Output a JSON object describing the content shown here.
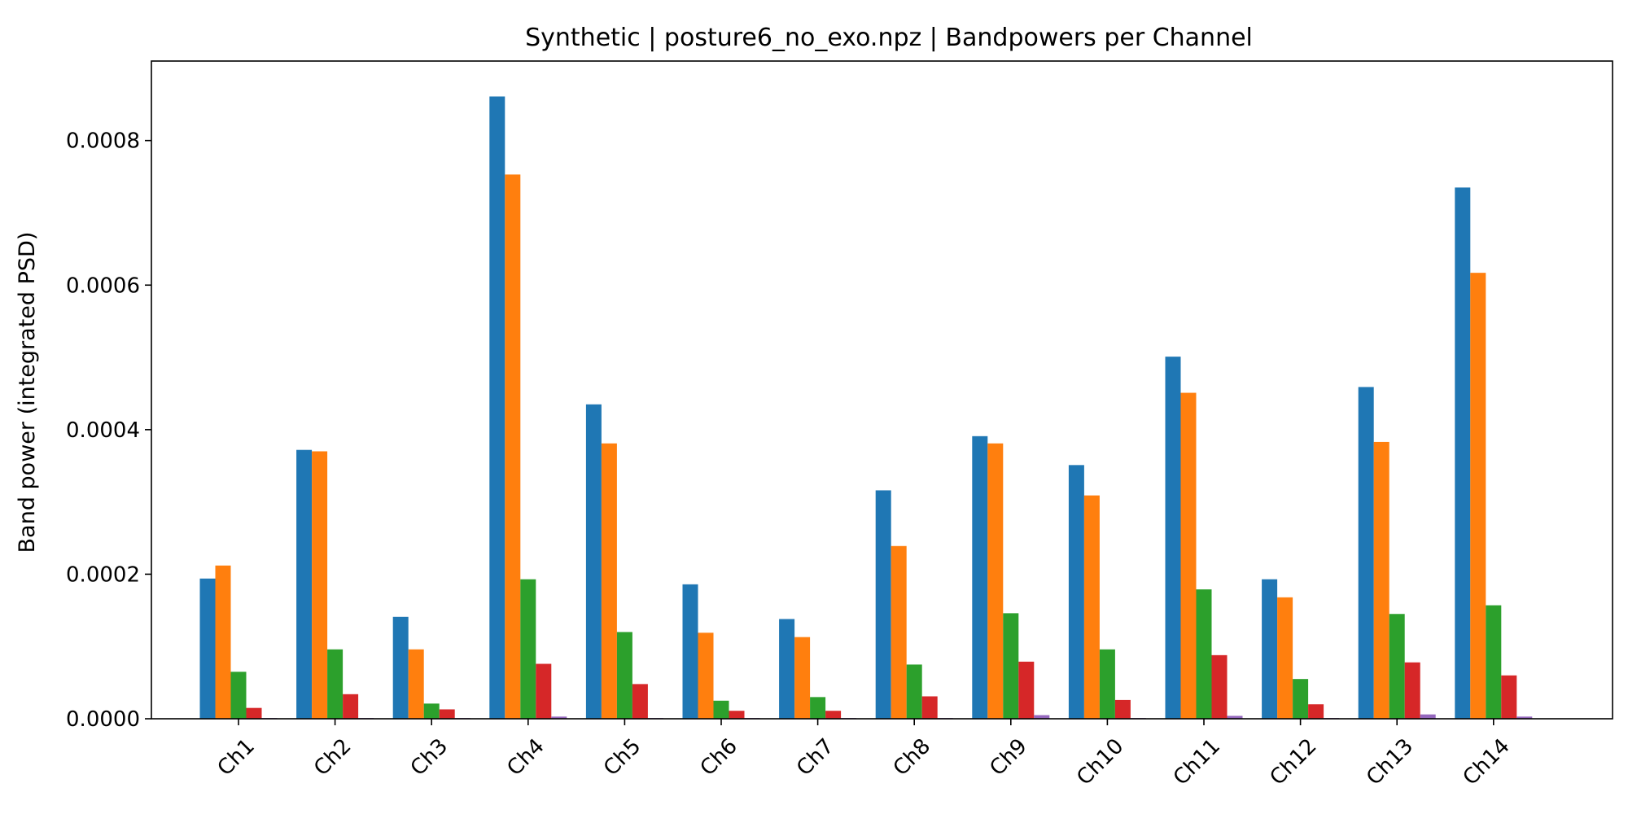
{
  "chart_data": {
    "type": "bar",
    "title": "Synthetic | posture6_no_exo.npz | Bandpowers per Channel",
    "xlabel": "",
    "ylabel": "Band power (integrated PSD)",
    "categories": [
      "Ch1",
      "Ch2",
      "Ch3",
      "Ch4",
      "Ch5",
      "Ch6",
      "Ch7",
      "Ch8",
      "Ch9",
      "Ch10",
      "Ch11",
      "Ch12",
      "Ch13",
      "Ch14"
    ],
    "ylim": [
      0,
      0.00091
    ],
    "yticks": [
      "0.0000",
      "0.0002",
      "0.0004",
      "0.0006",
      "0.0008"
    ],
    "ytick_values": [
      0,
      0.0002,
      0.0004,
      0.0006,
      0.0008
    ],
    "grid": false,
    "legend": "none",
    "series": [
      {
        "color": "#1f77b4",
        "values": [
          0.000194,
          0.000372,
          0.000141,
          0.000861,
          0.000435,
          0.000186,
          0.000138,
          0.000316,
          0.000391,
          0.000351,
          0.000501,
          0.000193,
          0.000459,
          0.000735
        ]
      },
      {
        "color": "#ff7f0e",
        "values": [
          0.000212,
          0.00037,
          9.6e-05,
          0.000753,
          0.000381,
          0.000119,
          0.000113,
          0.000239,
          0.000381,
          0.000309,
          0.000451,
          0.000168,
          0.000383,
          0.000617
        ]
      },
      {
        "color": "#2ca02c",
        "values": [
          6.5e-05,
          9.6e-05,
          2.1e-05,
          0.000193,
          0.00012,
          2.5e-05,
          3e-05,
          7.5e-05,
          0.000146,
          9.6e-05,
          0.000179,
          5.5e-05,
          0.000145,
          0.000157
        ]
      },
      {
        "color": "#d62728",
        "values": [
          1.5e-05,
          3.4e-05,
          1.3e-05,
          7.6e-05,
          4.8e-05,
          1.1e-05,
          1.1e-05,
          3.1e-05,
          7.9e-05,
          2.6e-05,
          8.8e-05,
          2e-05,
          7.8e-05,
          6e-05
        ]
      },
      {
        "color": "#9467bd",
        "values": [
          1e-06,
          1e-06,
          1e-06,
          3e-06,
          1e-06,
          1e-06,
          1e-06,
          1e-06,
          5e-06,
          1e-06,
          4e-06,
          1e-06,
          6e-06,
          3e-06
        ]
      }
    ]
  }
}
